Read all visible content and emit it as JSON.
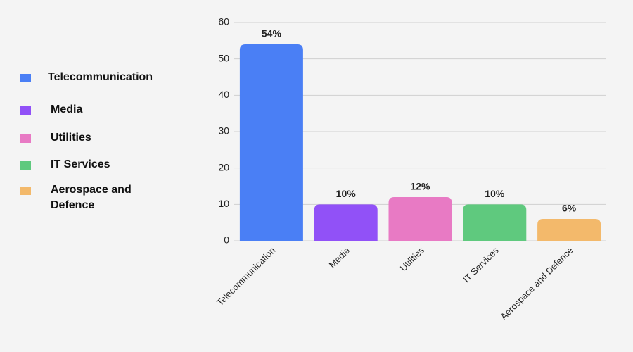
{
  "chart_data": {
    "type": "bar",
    "categories": [
      "Telecommunication",
      "Media",
      "Utilities",
      "IT Services",
      "Aerospace and Defence"
    ],
    "values": [
      54,
      10,
      12,
      10,
      6
    ],
    "value_labels": [
      "54%",
      "10%",
      "12%",
      "10%",
      "6%"
    ],
    "colors": [
      "#4a7ff5",
      "#9151f7",
      "#e87ac4",
      "#5fc97e",
      "#f3b96b"
    ],
    "ylim": [
      0,
      60
    ],
    "yticks": [
      0,
      10,
      20,
      30,
      40,
      50,
      60
    ],
    "grid": true,
    "legend": "left"
  }
}
